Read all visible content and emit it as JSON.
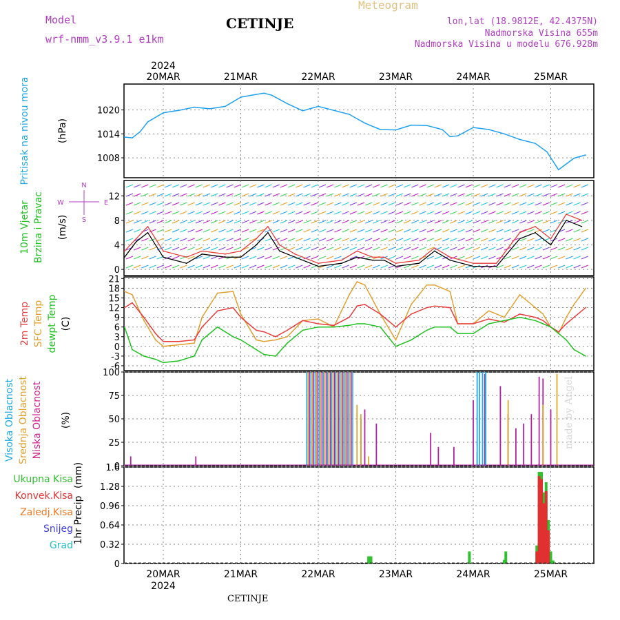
{
  "header": {
    "model_label": "Model",
    "model_name": "wrf-nmm_v3.9.1  e1km",
    "station": "CETINJE",
    "product": "Meteogram",
    "coords": "lon,lat (18.9812E, 42.4375N)",
    "elevation": "Nadmorska Visina 655m",
    "model_elevation": "Nadmorska Visina u modelu 676.928m"
  },
  "footer": {
    "station": "CETINJE"
  },
  "watermark": "made by Angel",
  "colors": {
    "pressure": "#1ea0f0",
    "temp2m": "#e83c3c",
    "sfc": "#e0a030",
    "dewpt": "#20c020",
    "cloud_high": "#20a8f0",
    "cloud_mid": "#d8a828",
    "cloud_low": "#b020a0",
    "rain_total": "#30c030",
    "rain_conv": "#e03030",
    "rain_frz": "#f07820",
    "snow": "#4040e0",
    "graupel": "#20c0c0",
    "wind_speed": "#000000",
    "wind_gust": "#e83c3c",
    "purple": "#b040c0",
    "cyan_label": "#20a8e0",
    "green_label": "#20c020",
    "orange_label": "#e0a030",
    "red_label": "#e04040",
    "magenta_label": "#d0208c"
  },
  "time_axis": {
    "year": "2024",
    "dates": [
      "20MAR",
      "21MAR",
      "22MAR",
      "23MAR",
      "24MAR",
      "25MAR"
    ]
  },
  "compass": {
    "n": "N",
    "s": "S",
    "e": "E",
    "w": "W"
  },
  "chart_data": [
    {
      "type": "line",
      "panel": "pressure",
      "ylabel": "Pritisak na nivou mora",
      "unit": "(hPa)",
      "ylim": [
        1003,
        1026.5
      ],
      "ticks": [
        1008,
        1014,
        1020
      ],
      "grid": true,
      "x_unit": "days since 20MAR 00h",
      "series": [
        {
          "x": [
            -0.5,
            -0.4,
            -0.3,
            -0.2,
            0,
            0.2,
            0.4,
            0.6,
            0.8,
            1.0,
            1.2,
            1.3,
            1.4,
            1.6,
            1.8,
            2.0,
            2.2,
            2.4,
            2.6,
            2.8,
            3.0,
            3.2,
            3.4,
            3.6,
            3.7,
            3.8,
            4.0,
            4.2,
            4.4,
            4.6,
            4.8,
            4.95,
            5.1,
            5.3,
            5.45
          ],
          "values": [
            1013.2,
            1013.0,
            1014.5,
            1017.0,
            1019.3,
            1019.9,
            1020.7,
            1020.3,
            1020.9,
            1023.2,
            1023.9,
            1024.2,
            1023.7,
            1021.6,
            1019.8,
            1020.9,
            1019.9,
            1018.9,
            1016.7,
            1015.1,
            1015.0,
            1016.2,
            1016.1,
            1015.1,
            1013.3,
            1013.5,
            1015.6,
            1015.1,
            1014.0,
            1012.6,
            1011.6,
            1009.5,
            1005.0,
            1007.9,
            1008.7
          ]
        }
      ]
    },
    {
      "type": "line",
      "panel": "wind",
      "title": "10m Vjetar",
      "ylabel": "Brzina i Pravac",
      "unit": "(m/s)",
      "ylim": [
        -1,
        14.5
      ],
      "ticks": [
        0,
        4,
        8,
        12
      ],
      "grid": true,
      "series": [
        {
          "name": "speed",
          "x": [
            -0.5,
            -0.35,
            -0.2,
            0,
            0.3,
            0.5,
            0.8,
            1.0,
            1.2,
            1.35,
            1.5,
            1.7,
            2.0,
            2.3,
            2.5,
            2.7,
            2.85,
            3.0,
            3.3,
            3.5,
            3.7,
            4.0,
            4.3,
            4.6,
            4.8,
            5.0,
            5.2,
            5.4
          ],
          "values": [
            2,
            4.5,
            6,
            2,
            1,
            2.5,
            2,
            2,
            4,
            6,
            3,
            2,
            0.5,
            1,
            2,
            1.5,
            1.5,
            0.5,
            1,
            3,
            1.5,
            0.5,
            0.5,
            5,
            6,
            4,
            8,
            7
          ]
        },
        {
          "name": "gust",
          "x": [
            -0.5,
            -0.35,
            -0.2,
            0,
            0.3,
            0.5,
            0.8,
            1.0,
            1.2,
            1.35,
            1.5,
            1.7,
            2.0,
            2.3,
            2.5,
            2.7,
            2.85,
            3.0,
            3.3,
            3.5,
            3.7,
            4.0,
            4.3,
            4.6,
            4.8,
            5.0,
            5.2,
            5.4
          ],
          "values": [
            3,
            5,
            7,
            3,
            2,
            3,
            2.5,
            3,
            5,
            7,
            4,
            2.5,
            1,
            1.5,
            3,
            2,
            2,
            1,
            1.5,
            3.5,
            2,
            1,
            1,
            6,
            7,
            5,
            9,
            8
          ]
        }
      ]
    },
    {
      "type": "line",
      "panel": "temperature",
      "ylabels": [
        "2m Temp",
        "SFC Temp",
        "dewpt Temp"
      ],
      "unit": "(C)",
      "ylim": [
        -7.5,
        21.5
      ],
      "ticks": [
        -6,
        -3,
        0,
        3,
        6,
        9,
        12,
        15,
        18,
        21
      ],
      "grid": true,
      "series": [
        {
          "name": "2m Temp",
          "x": [
            -0.5,
            -0.4,
            -0.25,
            -0.1,
            0,
            0.2,
            0.4,
            0.5,
            0.7,
            0.9,
            1.0,
            1.2,
            1.3,
            1.45,
            1.6,
            1.8,
            2.0,
            2.2,
            2.4,
            2.5,
            2.6,
            2.8,
            3.0,
            3.2,
            3.4,
            3.5,
            3.7,
            3.8,
            4.0,
            4.2,
            4.4,
            4.6,
            4.8,
            4.9,
            5.0,
            5.1,
            5.2,
            5.3,
            5.45
          ],
          "values": [
            12,
            13.5,
            9,
            4,
            1.5,
            1.5,
            2,
            6,
            11,
            12,
            9,
            5,
            4.5,
            3,
            5,
            8,
            7,
            6.5,
            9,
            12.5,
            13,
            10,
            6,
            10,
            12,
            12.5,
            12,
            7,
            7,
            8.5,
            7.5,
            10,
            9,
            8,
            6,
            4.5,
            7,
            9,
            12
          ]
        },
        {
          "name": "SFC Temp",
          "x": [
            -0.5,
            -0.4,
            -0.25,
            -0.1,
            0,
            0.2,
            0.4,
            0.5,
            0.7,
            0.9,
            1.0,
            1.2,
            1.3,
            1.45,
            1.6,
            1.8,
            2.0,
            2.2,
            2.4,
            2.5,
            2.6,
            2.8,
            3.0,
            3.2,
            3.4,
            3.5,
            3.7,
            3.8,
            4.0,
            4.2,
            4.4,
            4.6,
            4.8,
            4.9,
            5.0,
            5.1,
            5.2,
            5.3,
            5.45
          ],
          "values": [
            17,
            16,
            8,
            2,
            0,
            0.5,
            1,
            9,
            16.5,
            17,
            10,
            2,
            1.5,
            2,
            3,
            8,
            8.5,
            6,
            16,
            20,
            19,
            10,
            2,
            13,
            19,
            19,
            17,
            7,
            7,
            11,
            9,
            16,
            12,
            10,
            6,
            4,
            9,
            13,
            18
          ]
        },
        {
          "name": "dewpt Temp",
          "x": [
            -0.5,
            -0.4,
            -0.25,
            -0.1,
            0,
            0.2,
            0.4,
            0.5,
            0.7,
            0.9,
            1.0,
            1.2,
            1.3,
            1.45,
            1.6,
            1.8,
            2.0,
            2.2,
            2.4,
            2.5,
            2.6,
            2.8,
            3.0,
            3.2,
            3.4,
            3.5,
            3.7,
            3.8,
            4.0,
            4.2,
            4.4,
            4.6,
            4.8,
            4.9,
            5.0,
            5.1,
            5.2,
            5.3,
            5.45
          ],
          "values": [
            6,
            -1,
            -3,
            -4,
            -5,
            -4.5,
            -3,
            2,
            6,
            3,
            2,
            -1,
            -2.5,
            -3,
            1,
            5,
            6,
            6,
            6.5,
            7,
            7,
            6,
            0,
            2,
            5,
            6,
            6,
            4,
            4,
            7,
            8,
            9,
            8,
            7,
            6,
            4,
            2,
            -1,
            -3
          ]
        }
      ]
    },
    {
      "type": "bar",
      "panel": "clouds",
      "ylabels": [
        "Visoka Oblacnost",
        "Srednja Oblacnost",
        "Niska Oblacnost"
      ],
      "unit": "(%)",
      "ylim": [
        0,
        100
      ],
      "ticks": [
        0,
        25,
        50,
        75,
        100
      ],
      "grid": true,
      "series": [
        {
          "name": "Niska Oblacnost",
          "x": [
            -0.42,
            0.42,
            2.55,
            2.6,
            2.75,
            3.45,
            3.55,
            3.75,
            4.0,
            4.15,
            4.35,
            4.45,
            4.55,
            4.65,
            4.75,
            4.85,
            4.9,
            5.0
          ],
          "values": [
            10,
            10,
            50,
            60,
            45,
            35,
            20,
            20,
            70,
            98,
            85,
            55,
            40,
            45,
            55,
            95,
            93,
            60
          ]
        },
        {
          "name": "Srednja Oblacnost",
          "x": [
            2.5,
            2.55,
            2.65,
            4.05,
            4.45,
            4.9,
            5.08
          ],
          "values": [
            65,
            55,
            10,
            15,
            70,
            65,
            98
          ]
        },
        {
          "name": "Visoka Oblacnost",
          "x": [
            4.05,
            4.08,
            4.12,
            4.16
          ],
          "values": [
            100,
            100,
            100,
            100
          ]
        }
      ],
      "block": {
        "x_from": 1.85,
        "x_to": 2.45,
        "values": 100
      }
    },
    {
      "type": "bar",
      "panel": "precip",
      "ylabel": "1hr Precip",
      "unit": "(mm)",
      "legend": [
        "Ukupna Kisa",
        "Konvek.Kisa",
        "Zaledj.Kisa",
        "Snijeg",
        "Grad"
      ],
      "ylim": [
        0,
        1.6
      ],
      "ticks": [
        0,
        0.32,
        0.64,
        0.96,
        1.28,
        1.6
      ],
      "grid": true,
      "series": [
        {
          "name": "Ukupna Kisa",
          "x": [
            2.65,
            2.68,
            3.95,
            4.4,
            4.42,
            4.82,
            4.85,
            4.88,
            4.91,
            4.94,
            4.97,
            5.0,
            5.03
          ],
          "values": [
            0.12,
            0.12,
            0.2,
            0.06,
            0.2,
            0.3,
            1.52,
            1.52,
            1.18,
            1.35,
            0.72,
            0.2,
            0.05
          ]
        },
        {
          "name": "Konvek.Kisa",
          "x": [
            4.82,
            4.85,
            4.88,
            4.91,
            4.94,
            4.97
          ],
          "values": [
            0.2,
            1.45,
            1.4,
            1.0,
            1.2,
            0.55
          ]
        }
      ]
    }
  ]
}
